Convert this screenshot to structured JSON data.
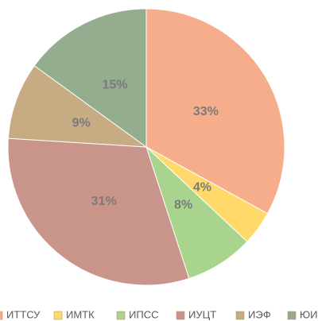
{
  "chart_data": {
    "type": "pie",
    "categories": [
      "ИТТСУ",
      "ИМТК",
      "ИПСС",
      "ИУЦТ",
      "ИЭФ",
      "ЮИ"
    ],
    "values": [
      33,
      4,
      8,
      31,
      9,
      15
    ],
    "value_labels": [
      "33%",
      "4%",
      "8%",
      "31%",
      "9%",
      "15%"
    ],
    "colors": [
      "#f6ad8c",
      "#ffd96a",
      "#a9d48e",
      "#c9958b",
      "#c7ab82",
      "#94ad8e"
    ],
    "legend": "bottom"
  }
}
